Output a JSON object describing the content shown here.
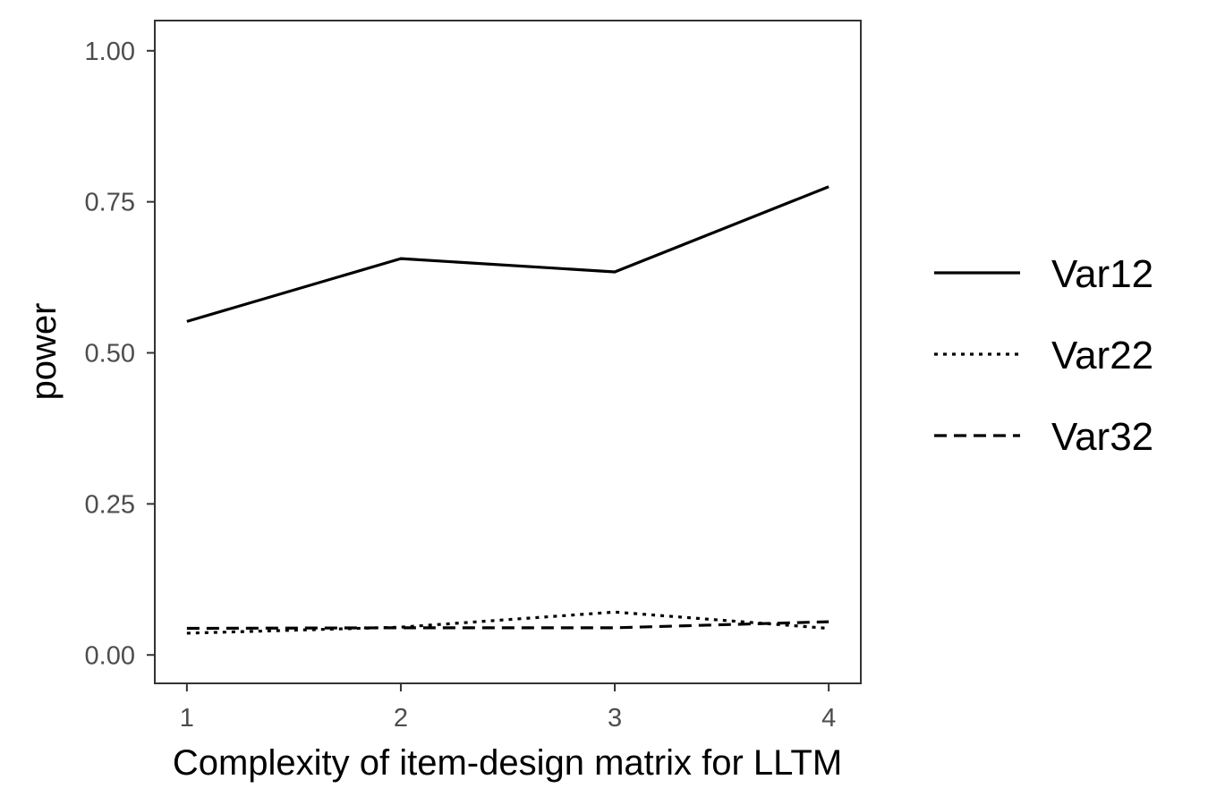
{
  "chart_data": {
    "type": "line",
    "x": [
      1,
      2,
      3,
      4
    ],
    "series": [
      {
        "name": "Var12",
        "values": [
          0.552,
          0.656,
          0.634,
          0.775
        ],
        "linetype": "solid"
      },
      {
        "name": "Var22",
        "values": [
          0.036,
          0.046,
          0.071,
          0.044
        ],
        "linetype": "dotted"
      },
      {
        "name": "Var32",
        "values": [
          0.044,
          0.045,
          0.045,
          0.055
        ],
        "linetype": "dashed"
      }
    ],
    "xticks": [
      "1",
      "2",
      "3",
      "4"
    ],
    "yticks": [
      "0.00",
      "0.25",
      "0.50",
      "0.75",
      "1.00"
    ],
    "xlabel": "Complexity of item-design matrix for LLTM",
    "ylabel": "power",
    "xlim": [
      0.85,
      4.15
    ],
    "ylim": [
      -0.047,
      1.05
    ],
    "grid": false,
    "legend_position": "right",
    "line_color": "#000000"
  }
}
